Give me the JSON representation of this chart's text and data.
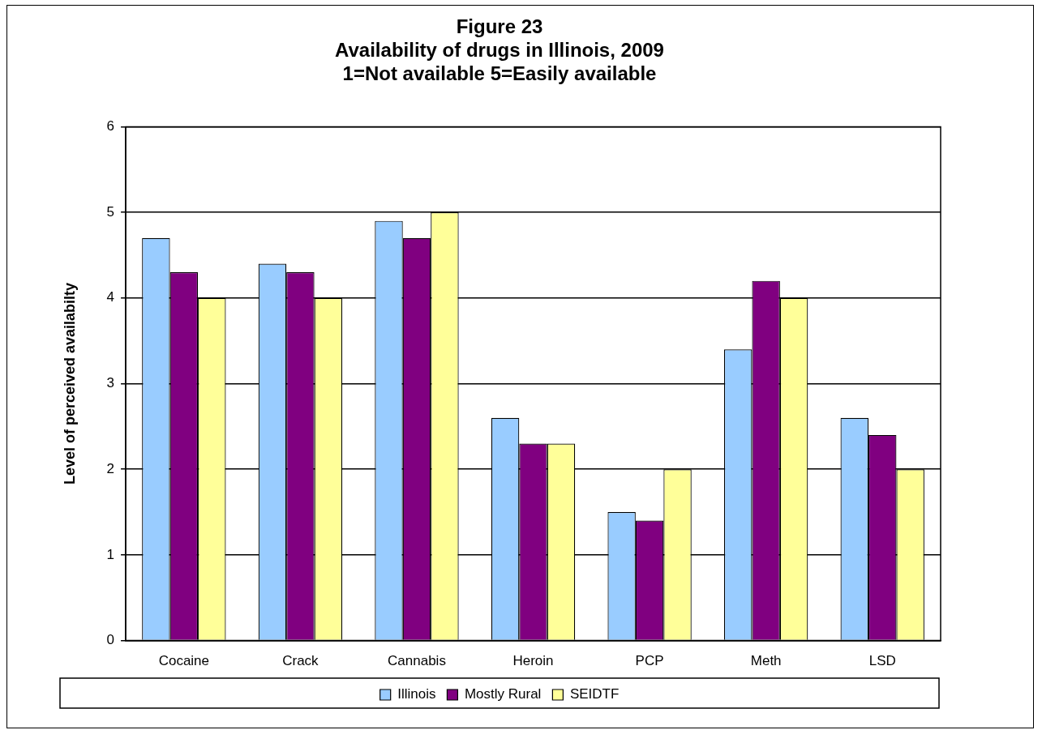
{
  "chart_data": {
    "type": "bar",
    "title": "Figure 23\nAvailability of drugs in Illinois, 2009\n1=Not available 5=Easily available",
    "ylabel": "Level of perceived availabilty",
    "categories": [
      "Cocaine",
      "Crack",
      "Cannabis",
      "Heroin",
      "PCP",
      "Meth",
      "LSD"
    ],
    "series": [
      {
        "name": "Illinois",
        "color": "#99ccff",
        "values": [
          4.7,
          4.4,
          4.9,
          2.6,
          1.5,
          3.4,
          2.6
        ]
      },
      {
        "name": "Mostly Rural",
        "color": "#800080",
        "values": [
          4.3,
          4.3,
          4.7,
          2.3,
          1.4,
          4.2,
          2.4
        ]
      },
      {
        "name": "SEIDTF",
        "color": "#ffff99",
        "values": [
          4.0,
          4.0,
          5.0,
          2.3,
          2.0,
          4.0,
          2.0
        ]
      }
    ],
    "ylim": [
      0,
      6
    ],
    "yticks": [
      0,
      1,
      2,
      3,
      4,
      5,
      6
    ],
    "grid": "y",
    "legend": "bottom"
  }
}
